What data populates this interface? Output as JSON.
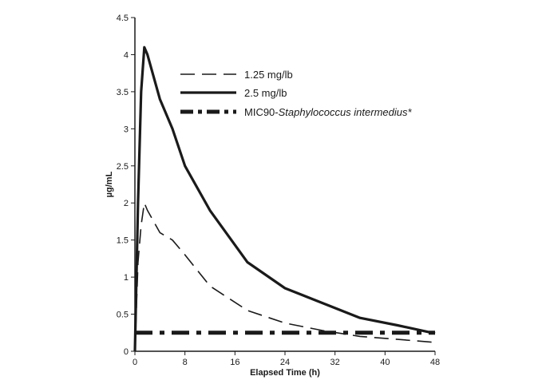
{
  "chart_data": {
    "type": "line",
    "xlabel": "Elapsed Time (h)",
    "ylabel": "µg/mL",
    "xlim": [
      0,
      48
    ],
    "ylim": [
      0,
      4.5
    ],
    "x_ticks": [
      0,
      8,
      16,
      24,
      32,
      40,
      48
    ],
    "y_ticks": [
      0,
      0.5,
      1,
      1.5,
      2,
      2.5,
      3,
      3.5,
      4,
      4.5
    ],
    "x_tick_labels": [
      "0",
      "8",
      "16",
      "24",
      "32",
      "40",
      "48"
    ],
    "y_tick_labels": [
      "0",
      "0.5",
      "1",
      "1.5",
      "2",
      "2.5",
      "3",
      "3.5",
      "4",
      "4.5"
    ],
    "grid": false,
    "legend_position": "top-right",
    "series": [
      {
        "name": "1.25 mg/lb",
        "style": "dashed",
        "color": "#1a1a1a",
        "x": [
          0,
          0.5,
          1,
          1.5,
          2,
          3,
          4,
          6,
          8,
          12,
          18,
          24,
          30,
          36,
          42,
          48
        ],
        "y": [
          0,
          1.2,
          1.7,
          2.0,
          1.9,
          1.75,
          1.6,
          1.5,
          1.3,
          0.88,
          0.55,
          0.38,
          0.28,
          0.2,
          0.16,
          0.12
        ]
      },
      {
        "name": "2.5 mg/lb",
        "style": "solid",
        "color": "#1a1a1a",
        "x": [
          0,
          0.5,
          1,
          1.5,
          2,
          4,
          6,
          8,
          12,
          18,
          24,
          30,
          36,
          42,
          48
        ],
        "y": [
          0,
          2.0,
          3.5,
          4.1,
          4.0,
          3.4,
          3.0,
          2.5,
          1.9,
          1.2,
          0.85,
          0.65,
          0.45,
          0.35,
          0.24
        ]
      },
      {
        "name": "MIC90-",
        "name_italic": "Staphylococcus intermedius*",
        "style": "dash-dot",
        "color": "#1a1a1a",
        "x": [
          0,
          48
        ],
        "y": [
          0.25,
          0.25
        ]
      }
    ]
  }
}
